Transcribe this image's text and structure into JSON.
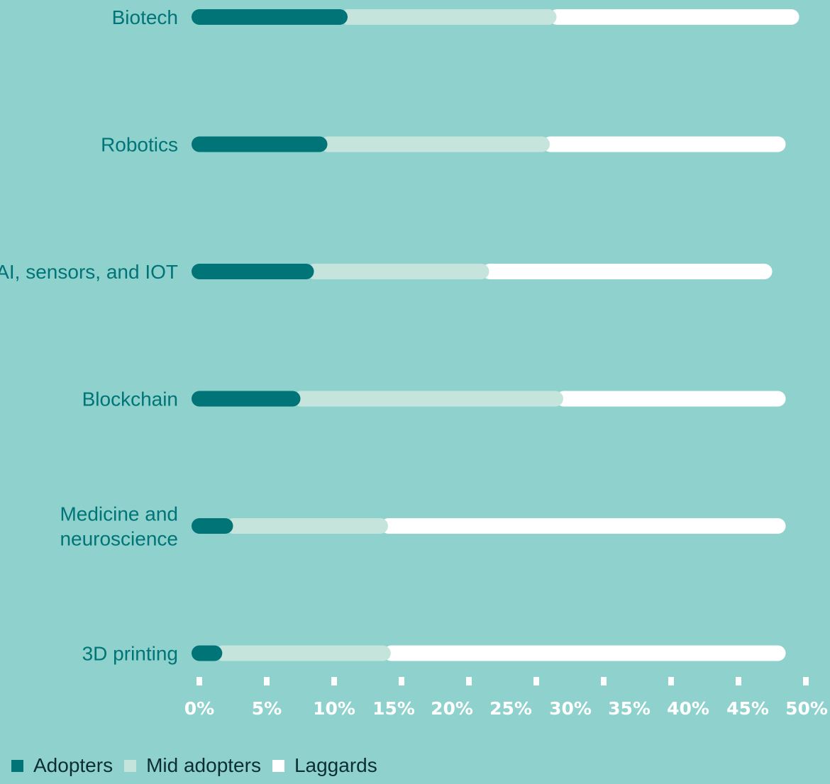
{
  "chart_data": {
    "type": "bar",
    "orientation": "horizontal",
    "stacked": true,
    "categories": [
      "Biotech",
      "Robotics",
      "AI, sensors, and IOT",
      "Blockchain",
      "Medicine and neuroscience",
      "3D printing"
    ],
    "category_lines": [
      [
        "Biotech"
      ],
      [
        "Robotics"
      ],
      [
        "AI, sensors, and IOT"
      ],
      [
        "Blockchain"
      ],
      [
        "Medicine and",
        "neuroscience"
      ],
      [
        "3D printing"
      ]
    ],
    "series": [
      {
        "name": "Adopters",
        "color": "#007476",
        "values": [
          11,
          9.5,
          8.5,
          7.5,
          2.5,
          1.7
        ]
      },
      {
        "name": "Mid adopters",
        "color": "#c5e5dc",
        "values": [
          15.5,
          16.5,
          13,
          19.5,
          11.5,
          12.5
        ]
      },
      {
        "name": "Laggards",
        "color": "#ffffff",
        "values": [
          18,
          17.5,
          21,
          16.5,
          29.5,
          29.3
        ]
      }
    ],
    "x_ticks": [
      "0%",
      "5%",
      "10%",
      "15%",
      "20%",
      "25%",
      "30%",
      "35%",
      "40%",
      "45%",
      "50%"
    ],
    "xlim": [
      0,
      50
    ],
    "grid": false,
    "legend_position": "bottom-left"
  }
}
